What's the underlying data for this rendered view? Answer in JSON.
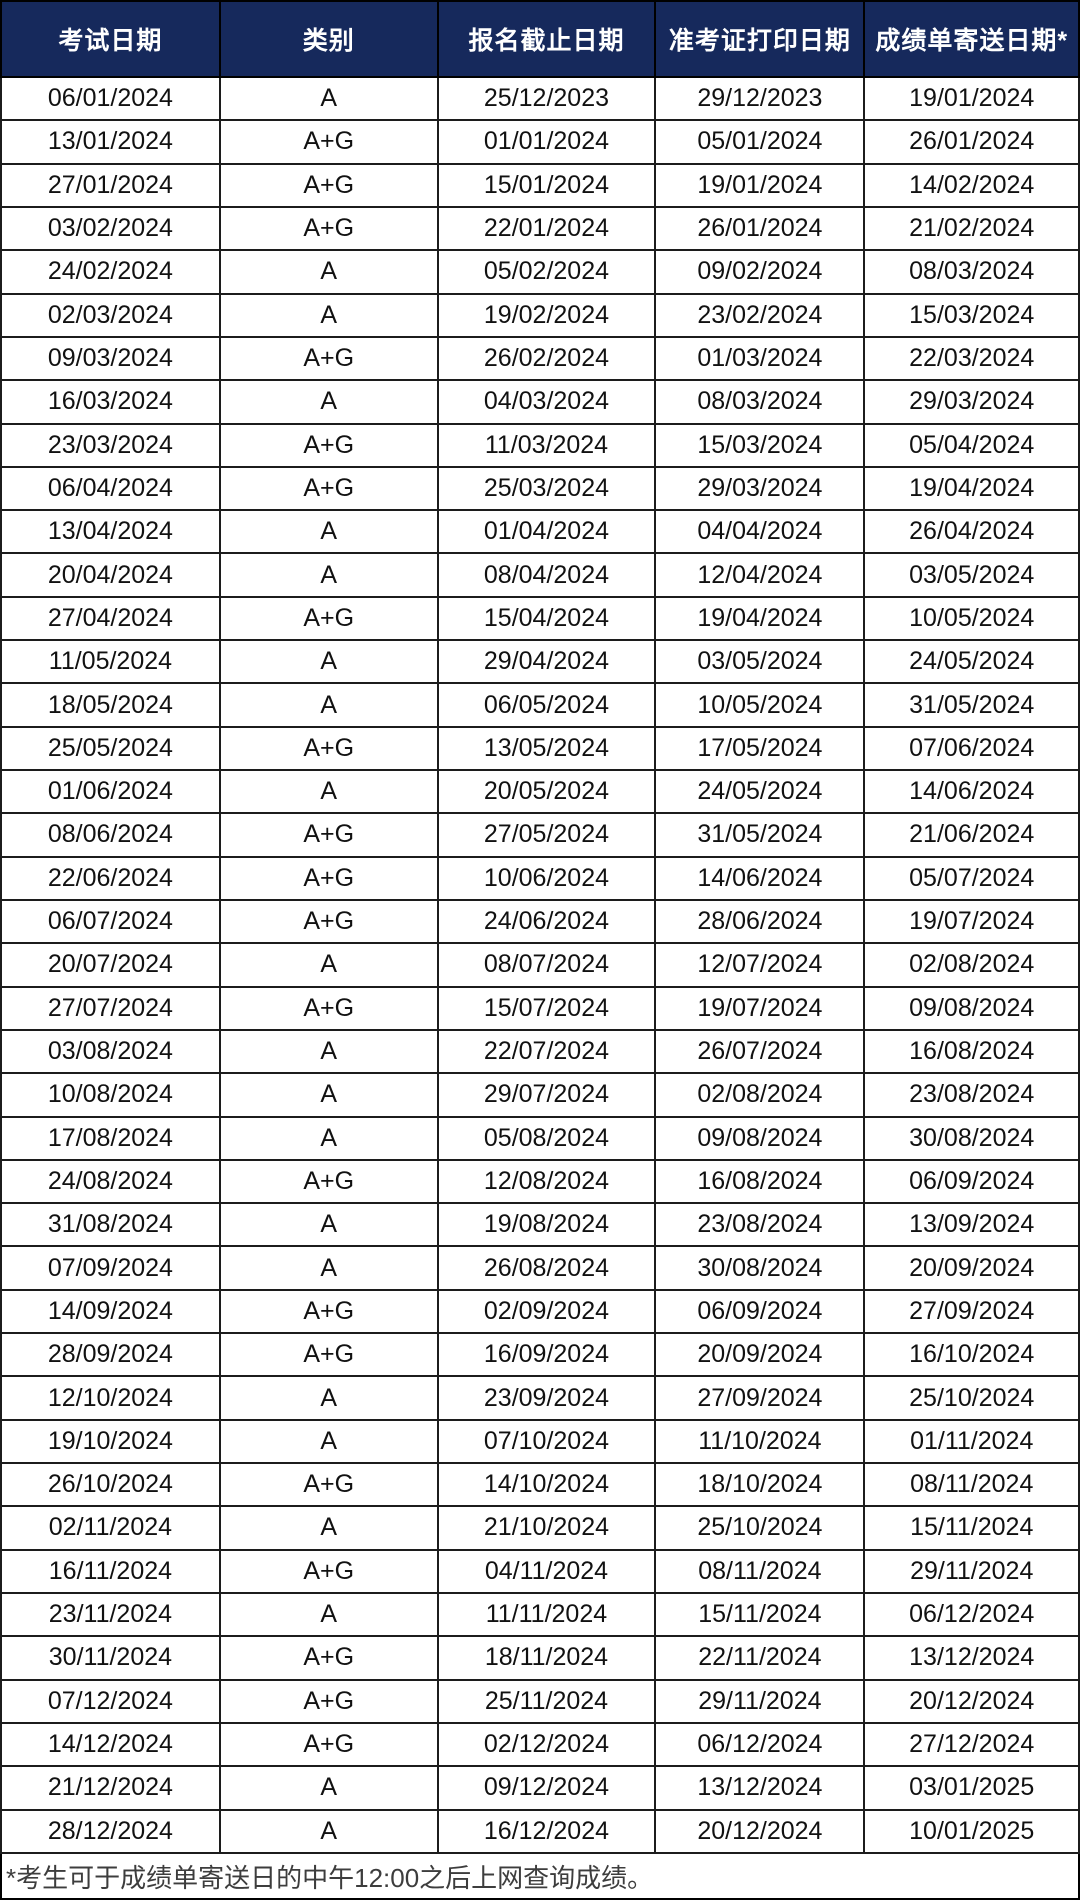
{
  "table": {
    "columns": [
      "考试日期",
      "类别",
      "报名截止日期",
      "准考证打印日期",
      "成绩单寄送日期*"
    ],
    "column_keys": [
      "exam-date",
      "category",
      "registration-deadline",
      "admission-ticket-print-date",
      "score-report-mailing-date"
    ],
    "rows": [
      [
        "06/01/2024",
        "A",
        "25/12/2023",
        "29/12/2023",
        "19/01/2024"
      ],
      [
        "13/01/2024",
        "A+G",
        "01/01/2024",
        "05/01/2024",
        "26/01/2024"
      ],
      [
        "27/01/2024",
        "A+G",
        "15/01/2024",
        "19/01/2024",
        "14/02/2024"
      ],
      [
        "03/02/2024",
        "A+G",
        "22/01/2024",
        "26/01/2024",
        "21/02/2024"
      ],
      [
        "24/02/2024",
        "A",
        "05/02/2024",
        "09/02/2024",
        "08/03/2024"
      ],
      [
        "02/03/2024",
        "A",
        "19/02/2024",
        "23/02/2024",
        "15/03/2024"
      ],
      [
        "09/03/2024",
        "A+G",
        "26/02/2024",
        "01/03/2024",
        "22/03/2024"
      ],
      [
        "16/03/2024",
        "A",
        "04/03/2024",
        "08/03/2024",
        "29/03/2024"
      ],
      [
        "23/03/2024",
        "A+G",
        "11/03/2024",
        "15/03/2024",
        "05/04/2024"
      ],
      [
        "06/04/2024",
        "A+G",
        "25/03/2024",
        "29/03/2024",
        "19/04/2024"
      ],
      [
        "13/04/2024",
        "A",
        "01/04/2024",
        "04/04/2024",
        "26/04/2024"
      ],
      [
        "20/04/2024",
        "A",
        "08/04/2024",
        "12/04/2024",
        "03/05/2024"
      ],
      [
        "27/04/2024",
        "A+G",
        "15/04/2024",
        "19/04/2024",
        "10/05/2024"
      ],
      [
        "11/05/2024",
        "A",
        "29/04/2024",
        "03/05/2024",
        "24/05/2024"
      ],
      [
        "18/05/2024",
        "A",
        "06/05/2024",
        "10/05/2024",
        "31/05/2024"
      ],
      [
        "25/05/2024",
        "A+G",
        "13/05/2024",
        "17/05/2024",
        "07/06/2024"
      ],
      [
        "01/06/2024",
        "A",
        "20/05/2024",
        "24/05/2024",
        "14/06/2024"
      ],
      [
        "08/06/2024",
        "A+G",
        "27/05/2024",
        "31/05/2024",
        "21/06/2024"
      ],
      [
        "22/06/2024",
        "A+G",
        "10/06/2024",
        "14/06/2024",
        "05/07/2024"
      ],
      [
        "06/07/2024",
        "A+G",
        "24/06/2024",
        "28/06/2024",
        "19/07/2024"
      ],
      [
        "20/07/2024",
        "A",
        "08/07/2024",
        "12/07/2024",
        "02/08/2024"
      ],
      [
        "27/07/2024",
        "A+G",
        "15/07/2024",
        "19/07/2024",
        "09/08/2024"
      ],
      [
        "03/08/2024",
        "A",
        "22/07/2024",
        "26/07/2024",
        "16/08/2024"
      ],
      [
        "10/08/2024",
        "A",
        "29/07/2024",
        "02/08/2024",
        "23/08/2024"
      ],
      [
        "17/08/2024",
        "A",
        "05/08/2024",
        "09/08/2024",
        "30/08/2024"
      ],
      [
        "24/08/2024",
        "A+G",
        "12/08/2024",
        "16/08/2024",
        "06/09/2024"
      ],
      [
        "31/08/2024",
        "A",
        "19/08/2024",
        "23/08/2024",
        "13/09/2024"
      ],
      [
        "07/09/2024",
        "A",
        "26/08/2024",
        "30/08/2024",
        "20/09/2024"
      ],
      [
        "14/09/2024",
        "A+G",
        "02/09/2024",
        "06/09/2024",
        "27/09/2024"
      ],
      [
        "28/09/2024",
        "A+G",
        "16/09/2024",
        "20/09/2024",
        "16/10/2024"
      ],
      [
        "12/10/2024",
        "A",
        "23/09/2024",
        "27/09/2024",
        "25/10/2024"
      ],
      [
        "19/10/2024",
        "A",
        "07/10/2024",
        "11/10/2024",
        "01/11/2024"
      ],
      [
        "26/10/2024",
        "A+G",
        "14/10/2024",
        "18/10/2024",
        "08/11/2024"
      ],
      [
        "02/11/2024",
        "A",
        "21/10/2024",
        "25/10/2024",
        "15/11/2024"
      ],
      [
        "16/11/2024",
        "A+G",
        "04/11/2024",
        "08/11/2024",
        "29/11/2024"
      ],
      [
        "23/11/2024",
        "A",
        "11/11/2024",
        "15/11/2024",
        "06/12/2024"
      ],
      [
        "30/11/2024",
        "A+G",
        "18/11/2024",
        "22/11/2024",
        "13/12/2024"
      ],
      [
        "07/12/2024",
        "A+G",
        "25/11/2024",
        "29/11/2024",
        "20/12/2024"
      ],
      [
        "14/12/2024",
        "A+G",
        "02/12/2024",
        "06/12/2024",
        "27/12/2024"
      ],
      [
        "21/12/2024",
        "A",
        "09/12/2024",
        "13/12/2024",
        "03/01/2025"
      ],
      [
        "28/12/2024",
        "A",
        "16/12/2024",
        "20/12/2024",
        "10/01/2025"
      ]
    ],
    "footnote": "*考生可于成绩单寄送日的中午12:00之后上网查询成绩。"
  },
  "colors": {
    "header_background": "#16295c",
    "header_text": "#ffffff",
    "border": "#000000",
    "cell_text": "#111111",
    "footnote_text": "#3d3d3d"
  }
}
